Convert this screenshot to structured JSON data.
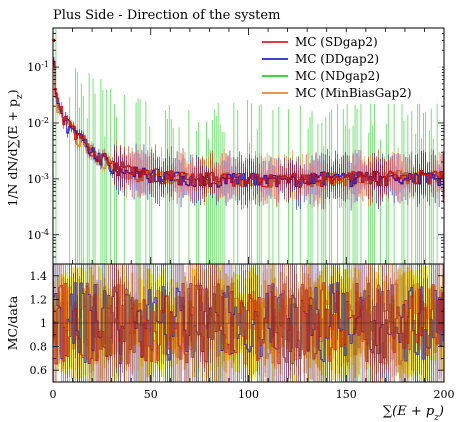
{
  "chart_data": {
    "type": "line",
    "title": "Plus Side - Direction of the system",
    "xlabel": "∑(E + p_z)",
    "top_panel": {
      "ylabel": "1/N dN/d∑(E + p_z)",
      "yscale": "log",
      "ylim": [
        3e-05,
        0.5
      ],
      "ytick_labels": [
        "10^-1",
        "10^-2",
        "10^-3",
        "10^-4"
      ],
      "ytick_values": [
        0.1,
        0.01,
        0.001,
        0.0001
      ],
      "legend_position": "top-right"
    },
    "ratio_panel": {
      "ylabel": "MC/data",
      "ylim": [
        0.5,
        1.5
      ],
      "ytick_labels": [
        "0.6",
        "0.8",
        "1",
        "1.2",
        "1.4"
      ],
      "ytick_values": [
        0.6,
        0.8,
        1.0,
        1.2,
        1.4
      ]
    },
    "xlim": [
      0,
      200
    ],
    "xtick_labels": [
      "0",
      "50",
      "100",
      "150",
      "200"
    ],
    "xtick_values": [
      0,
      50,
      100,
      150,
      200
    ],
    "series": [
      {
        "name": "MC (SDgap2)",
        "color": "#cc0000",
        "x": [
          0,
          1,
          2,
          4,
          6,
          8,
          10,
          15,
          20,
          25,
          30,
          35,
          40,
          50,
          60,
          80,
          100,
          120,
          150,
          175,
          200
        ],
        "y": [
          0.3,
          0.04,
          0.025,
          0.017,
          0.012,
          0.009,
          0.0075,
          0.0048,
          0.0033,
          0.0024,
          0.0019,
          0.0016,
          0.0014,
          0.0012,
          0.0011,
          0.00105,
          0.001,
          0.001,
          0.00105,
          0.0011,
          0.0011
        ]
      },
      {
        "name": "MC (DDgap2)",
        "color": "#0000cc",
        "x": [
          0,
          1,
          2,
          4,
          6,
          8,
          10,
          15,
          20,
          25,
          30,
          35,
          40,
          50,
          60,
          80,
          100,
          120,
          150,
          175,
          200
        ],
        "y": [
          0.28,
          0.038,
          0.024,
          0.016,
          0.0115,
          0.0088,
          0.0072,
          0.0046,
          0.0032,
          0.0023,
          0.0018,
          0.0015,
          0.0013,
          0.00115,
          0.00105,
          0.001,
          0.00098,
          0.001,
          0.00102,
          0.00108,
          0.00108
        ]
      },
      {
        "name": "MC (NDgap2)",
        "color": "#00cc00",
        "x": [
          0,
          1,
          2,
          4,
          6,
          8,
          10,
          15,
          20,
          25,
          30,
          35,
          40,
          50,
          60,
          80,
          100,
          120,
          150,
          175,
          200
        ],
        "y": [
          0.25,
          0.035,
          0.022,
          0.015,
          0.011,
          0.0085,
          0.007,
          0.0045,
          0.003,
          0.0022,
          0.0017,
          0.0014,
          0.0012,
          0.0011,
          0.001,
          0.001,
          0.00095,
          0.001,
          0.001,
          0.00105,
          0.001
        ]
      },
      {
        "name": "MC (MinBiasGap2)",
        "color": "#e07800",
        "x": [
          0,
          1,
          2,
          4,
          6,
          8,
          10,
          15,
          20,
          25,
          30,
          35,
          40,
          50,
          60,
          80,
          100,
          120,
          150,
          175,
          200
        ],
        "y": [
          0.27,
          0.037,
          0.023,
          0.016,
          0.0112,
          0.0086,
          0.0071,
          0.0047,
          0.0032,
          0.0023,
          0.0018,
          0.0015,
          0.0013,
          0.0012,
          0.00105,
          0.001,
          0.001,
          0.001,
          0.00103,
          0.0011,
          0.00105
        ]
      }
    ],
    "ratio_band_colors": [
      "#ffff00",
      "#ffcc00"
    ]
  }
}
